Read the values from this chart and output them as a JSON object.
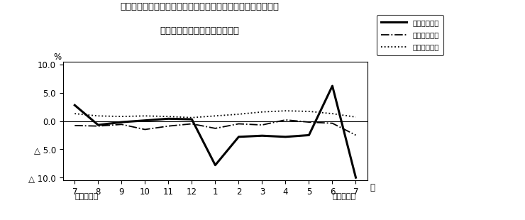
{
  "title_line1": "第４図　賃金、労働時間、常用雇用指数　対前年同月比の推移",
  "title_line2": "（規模５人以上　調査産業計）",
  "xlabel_months": [
    "7",
    "8",
    "9",
    "10",
    "11",
    "12",
    "1",
    "2",
    "3",
    "4",
    "5",
    "6",
    "7"
  ],
  "year_left": "平成２３年",
  "year_right": "平成２４年",
  "month_label": "月",
  "ylabel_top": "%",
  "ylim": [
    -10.5,
    10.5
  ],
  "yticks": [
    10.0,
    5.0,
    0.0,
    -5.0,
    -10.0
  ],
  "ytick_labels": [
    "10.0",
    "5.0",
    "0.0",
    "△ 5.0",
    "△ 10.0"
  ],
  "series": {
    "kinyu": {
      "label": "現金給与総額",
      "values": [
        2.8,
        -0.7,
        -0.2,
        0.1,
        0.4,
        0.3,
        -7.8,
        -2.8,
        -2.6,
        -2.8,
        -2.5,
        6.2,
        -10.0
      ],
      "linestyle": "solid",
      "linewidth": 2.2,
      "color": "#000000"
    },
    "rodo": {
      "label": "総実労働時間",
      "values": [
        -0.8,
        -0.9,
        -0.6,
        -1.5,
        -0.9,
        -0.5,
        -1.3,
        -0.5,
        -0.7,
        0.2,
        -0.2,
        -0.4,
        -2.5
      ],
      "linestyle": "dashdot",
      "linewidth": 1.3,
      "color": "#000000"
    },
    "koyo": {
      "label": "常用雇用指数",
      "values": [
        1.3,
        0.9,
        0.8,
        0.9,
        0.8,
        0.6,
        0.9,
        1.2,
        1.6,
        1.8,
        1.7,
        1.3,
        0.7
      ],
      "linestyle": "dotted",
      "linewidth": 1.3,
      "color": "#000000"
    }
  },
  "background_color": "#ffffff"
}
